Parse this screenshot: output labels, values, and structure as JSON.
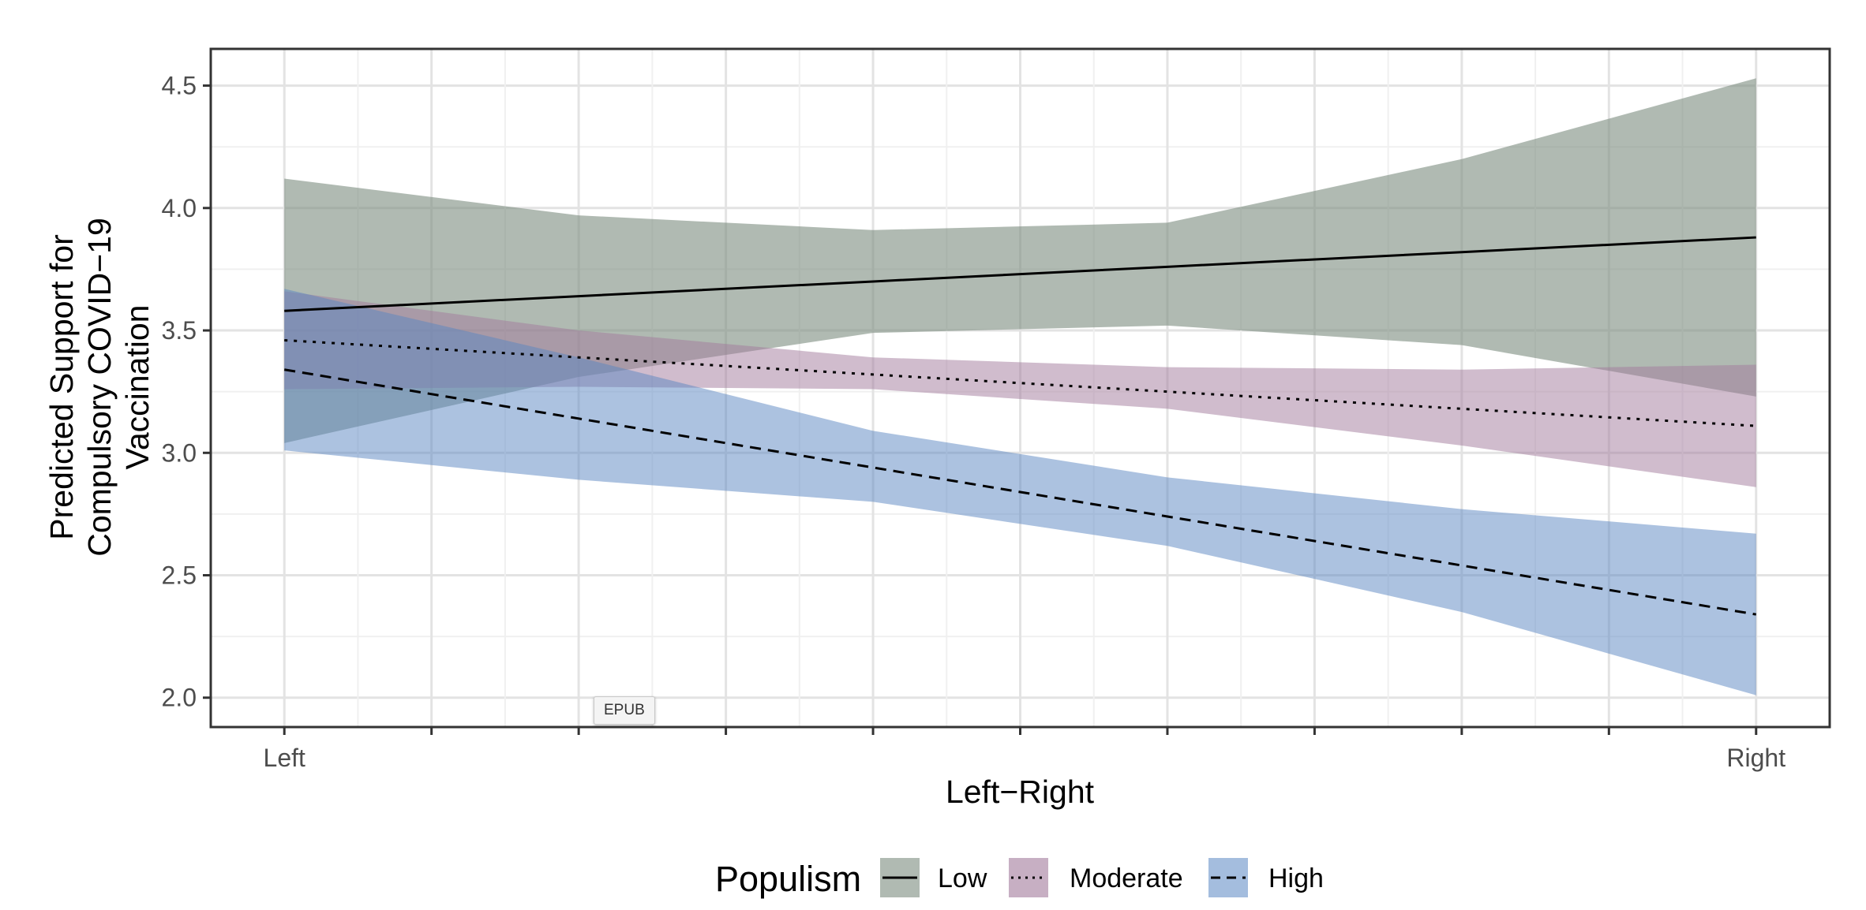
{
  "chart_data": {
    "type": "line",
    "title": "",
    "xlabel": "Left−Right",
    "ylabel_lines": [
      "Predicted Support for",
      "Compulsory COVID−19",
      "Vaccination"
    ],
    "x_tick_labels": [
      "Left",
      "Right"
    ],
    "y_ticks": [
      "2.0",
      "2.5",
      "3.0",
      "3.5",
      "4.0",
      "4.5"
    ],
    "x": [
      0,
      0.2,
      0.4,
      0.6,
      0.8,
      1
    ],
    "xlim": [
      -0.05,
      1.05
    ],
    "ylim": [
      1.88,
      4.65
    ],
    "grid": true,
    "legend_title": "Populism",
    "legend_position": "bottom",
    "series": [
      {
        "name": "Low",
        "linetype": "solid",
        "fill": "#7b8c7f",
        "line": "#000000",
        "values": [
          3.58,
          3.64,
          3.7,
          3.76,
          3.82,
          3.88
        ],
        "lower": [
          3.04,
          3.31,
          3.49,
          3.52,
          3.44,
          3.23
        ],
        "upper": [
          4.12,
          3.97,
          3.91,
          3.94,
          4.2,
          4.53
        ]
      },
      {
        "name": "Moderate",
        "linetype": "dotted",
        "fill": "#a27a9b",
        "line": "#000000",
        "values": [
          3.46,
          3.39,
          3.32,
          3.25,
          3.18,
          3.11
        ],
        "lower": [
          3.26,
          3.27,
          3.26,
          3.18,
          3.03,
          2.86
        ],
        "upper": [
          3.66,
          3.5,
          3.39,
          3.35,
          3.34,
          3.36
        ]
      },
      {
        "name": "High",
        "linetype": "dashed",
        "fill": "#5a86c2",
        "line": "#000000",
        "values": [
          3.34,
          3.14,
          2.94,
          2.74,
          2.54,
          2.34
        ],
        "lower": [
          3.01,
          2.89,
          2.8,
          2.62,
          2.35,
          2.01
        ],
        "upper": [
          3.67,
          3.39,
          3.09,
          2.9,
          2.77,
          2.67
        ]
      }
    ]
  },
  "overlay": {
    "badge_label": "EPUB"
  }
}
